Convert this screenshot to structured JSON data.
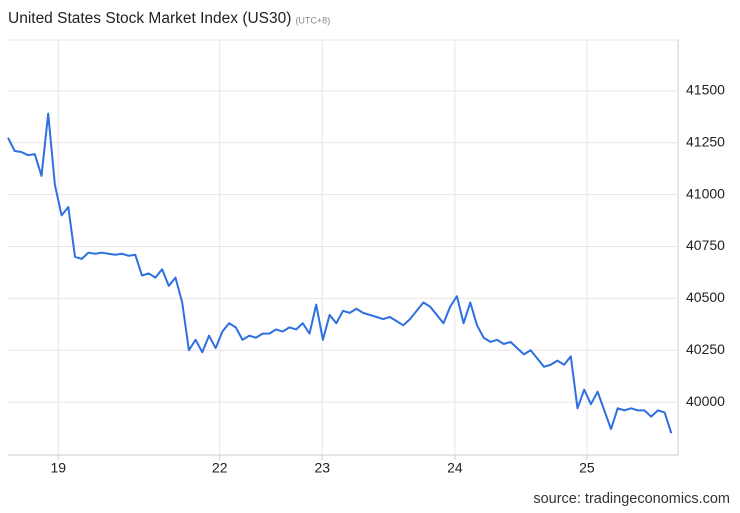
{
  "chart_data": {
    "type": "line",
    "title": "United States Stock Market Index (US30)",
    "subtitle": "(UTC+8)",
    "source": "source: tradingeconomics.com",
    "series": [
      {
        "name": "US30",
        "color": "#2f6fe0",
        "values": [
          41274,
          41210,
          41205,
          41190,
          41195,
          41090,
          41390,
          41047,
          40900,
          40940,
          40700,
          40690,
          40720,
          40715,
          40720,
          40715,
          40710,
          40715,
          40705,
          40710,
          40610,
          40620,
          40600,
          40640,
          40560,
          40600,
          40480,
          40250,
          40300,
          40240,
          40320,
          40260,
          40340,
          40380,
          40360,
          40300,
          40320,
          40310,
          40330,
          40330,
          40350,
          40340,
          40360,
          40350,
          40380,
          40330,
          40470,
          40300,
          40420,
          40380,
          40440,
          40430,
          40450,
          40430,
          40420,
          40410,
          40400,
          40410,
          40390,
          40370,
          40400,
          40440,
          40480,
          40460,
          40420,
          40380,
          40460,
          40510,
          40380,
          40480,
          40370,
          40310,
          40290,
          40300,
          40280,
          40290,
          40260,
          40230,
          40250,
          40210,
          40170,
          40180,
          40200,
          40180,
          40220,
          39970,
          40060,
          39990,
          40050,
          39960,
          39870,
          39970,
          39960,
          39970,
          39960,
          39960,
          39930,
          39960,
          39950,
          39850
        ]
      }
    ],
    "xlim": [
      0,
      100
    ],
    "xticks": [
      {
        "value": 7.5,
        "label": "19"
      },
      {
        "value": 31.6,
        "label": "22"
      },
      {
        "value": 46.9,
        "label": "23"
      },
      {
        "value": 66.7,
        "label": "24"
      },
      {
        "value": 86.4,
        "label": "25"
      }
    ],
    "ylim": [
      39745,
      41745
    ],
    "yticks": [
      40000,
      40250,
      40500,
      40750,
      41000,
      41250,
      41500
    ],
    "grid": true
  }
}
